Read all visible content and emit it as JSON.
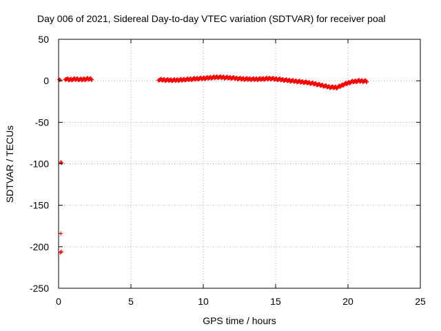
{
  "chart_data": {
    "type": "scatter",
    "title": "Day 006 of 2021, Sidereal Day-to-day VTEC variation (SDTVAR) for receiver poal",
    "xlabel": "GPS time / hours",
    "ylabel": "SDTVAR / TECUs",
    "xlim": [
      0,
      25
    ],
    "ylim": [
      -250,
      50
    ],
    "xticks": [
      0,
      5,
      10,
      15,
      20,
      25
    ],
    "yticks": [
      -250,
      -200,
      -150,
      -100,
      -50,
      0,
      50
    ],
    "grid": true,
    "marker": "plus",
    "color": "#ff0000",
    "series": [
      {
        "segments": [
          {
            "x_start": 0.45,
            "x_end": 2.3,
            "y": [
              2.5,
              1.5,
              1.8,
              2.2,
              1.6,
              2.0,
              2.4,
              2.1
            ]
          },
          {
            "x_start": 6.9,
            "x_end": 21.3,
            "y": [
              1.5,
              1.0,
              0.8,
              1.2,
              1.8,
              2.5,
              3.0,
              3.8,
              4.5,
              4.0,
              3.5,
              2.5,
              2.2,
              2.0,
              2.3,
              2.8,
              2.0,
              1.0,
              0.0,
              -1.0,
              -2.0,
              -3.5,
              -5.5,
              -7.5,
              -8.0,
              -4.0,
              -1.0,
              0.0,
              -0.5
            ]
          }
        ],
        "points": [
          {
            "x": 0.05,
            "y": 1.5
          },
          {
            "x": 0.1,
            "y": 1.0
          },
          {
            "x": 0.15,
            "y": -98
          },
          {
            "x": 0.2,
            "y": -99
          },
          {
            "x": 0.15,
            "y": -184
          },
          {
            "x": 0.12,
            "y": -207
          },
          {
            "x": 0.2,
            "y": -206
          }
        ]
      }
    ]
  }
}
